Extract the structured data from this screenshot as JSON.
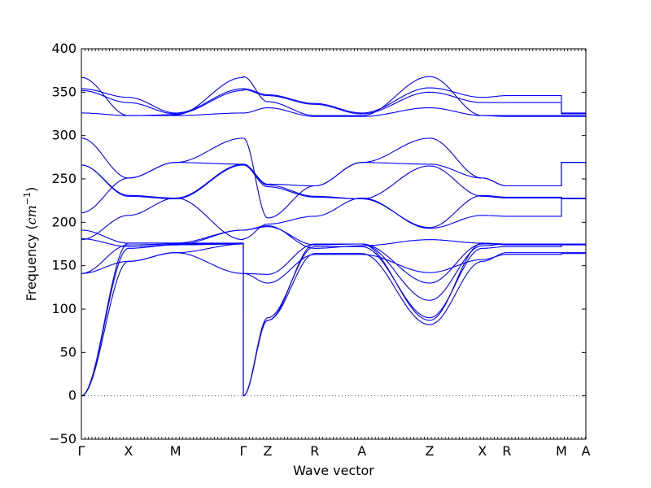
{
  "chart_data": {
    "type": "line",
    "xlabel": "Wave vector",
    "ylabel": "Frequency (cm⁻¹)",
    "ylabel_main": "Frequency (",
    "ylabel_unit": "cm",
    "ylabel_exp": "−1",
    "ylabel_close": ")",
    "ylim": [
      -50,
      400
    ],
    "yticks": [
      -50,
      0,
      50,
      100,
      150,
      200,
      250,
      300,
      350,
      400
    ],
    "grid": false,
    "legend": "none",
    "line_color": "#0000ff",
    "zero_line": {
      "y": 0,
      "style": "dotted",
      "color": "#555555"
    },
    "segments": [
      {
        "from": "Γ",
        "to": "X",
        "x0": 0.0,
        "x1": 0.5
      },
      {
        "from": "X",
        "to": "M",
        "x0": 0.5,
        "x1": 1.0
      },
      {
        "from": "M",
        "to": "Γ",
        "x0": 1.0,
        "x1": 1.72
      },
      {
        "from": "Γ",
        "to": "Z",
        "x0": 1.72,
        "x1": 1.98
      },
      {
        "from": "Z",
        "to": "R",
        "x0": 1.98,
        "x1": 2.48
      },
      {
        "from": "R",
        "to": "A",
        "x0": 2.48,
        "x1": 2.98
      },
      {
        "from": "A",
        "to": "Z",
        "x0": 2.98,
        "x1": 3.7
      },
      {
        "from": "X",
        "to": "R",
        "x0": 4.26,
        "x1": 4.52
      },
      {
        "from": "M",
        "to": "A",
        "x0": 5.1,
        "x1": 5.36
      }
    ],
    "xlim": [
      0,
      5.36
    ],
    "kpoints": [
      {
        "label": "Γ",
        "x": 0.0
      },
      {
        "label": "X",
        "x": 0.5
      },
      {
        "label": "M",
        "x": 1.0
      },
      {
        "label": "Γ",
        "x": 1.72
      },
      {
        "label": "Z",
        "x": 1.98
      },
      {
        "label": "R",
        "x": 2.48
      },
      {
        "label": "A",
        "x": 2.98
      },
      {
        "label": "Z",
        "x": 3.7
      },
      {
        "label": "X",
        "x": 4.26
      },
      {
        "label": "R",
        "x": 4.52
      },
      {
        "label": "M",
        "x": 5.1
      },
      {
        "label": "A",
        "x": 5.36
      }
    ],
    "extra_segments": [
      {
        "from": "Z",
        "to": "X",
        "x0": 3.7,
        "x1": 4.26
      },
      {
        "from": "R",
        "to": "M",
        "x0": 4.52,
        "x1": 5.1
      }
    ],
    "branches": [
      [
        0,
        176,
        176,
        176,
        0,
        87,
        175,
        175,
        87,
        176,
        175,
        175,
        175,
        175
      ],
      [
        0,
        170,
        174,
        175,
        0,
        90,
        172,
        172,
        90,
        170,
        172,
        172,
        174,
        175
      ],
      [
        0,
        155,
        165,
        175,
        0,
        87,
        164,
        164,
        82,
        155,
        165,
        165,
        165,
        165
      ],
      [
        141,
        155,
        165,
        141,
        141,
        130,
        163,
        163,
        142,
        157,
        163,
        163,
        164,
        164
      ],
      [
        141,
        174,
        175,
        175,
        141,
        140,
        175,
        175,
        130,
        175,
        175,
        175,
        175,
        175
      ],
      [
        180,
        208,
        228,
        180,
        181,
        198,
        207,
        228,
        193,
        208,
        207,
        207,
        228,
        228
      ],
      [
        181,
        172,
        174,
        191,
        191,
        196,
        170,
        173,
        180,
        176,
        174,
        174,
        174,
        174
      ],
      [
        191,
        176,
        176,
        191,
        191,
        195,
        174,
        175,
        110,
        173,
        175,
        175,
        175,
        175
      ],
      [
        211,
        251,
        269,
        267,
        267,
        244,
        242,
        269,
        267,
        251,
        242,
        242,
        269,
        269
      ],
      [
        266,
        231,
        228,
        267,
        267,
        243,
        230,
        227,
        265,
        230,
        228,
        228,
        227,
        227
      ],
      [
        266,
        230,
        227,
        266,
        266,
        241,
        229,
        227,
        194,
        231,
        229,
        229,
        227,
        227
      ],
      [
        297,
        251,
        269,
        297,
        297,
        205,
        242,
        269,
        297,
        251,
        242,
        242,
        269,
        269
      ],
      [
        326,
        323,
        323,
        326,
        326,
        332,
        322,
        322,
        332,
        323,
        322,
        322,
        322,
        322
      ],
      [
        352,
        338,
        325,
        352,
        353,
        346,
        336,
        325,
        350,
        338,
        338,
        338,
        325,
        325
      ],
      [
        354,
        344,
        326,
        354,
        354,
        347,
        337,
        326,
        355,
        344,
        346,
        346,
        326,
        326
      ],
      [
        367,
        323,
        324,
        367,
        368,
        339,
        323,
        323,
        368,
        323,
        323,
        323,
        323,
        323
      ]
    ]
  }
}
